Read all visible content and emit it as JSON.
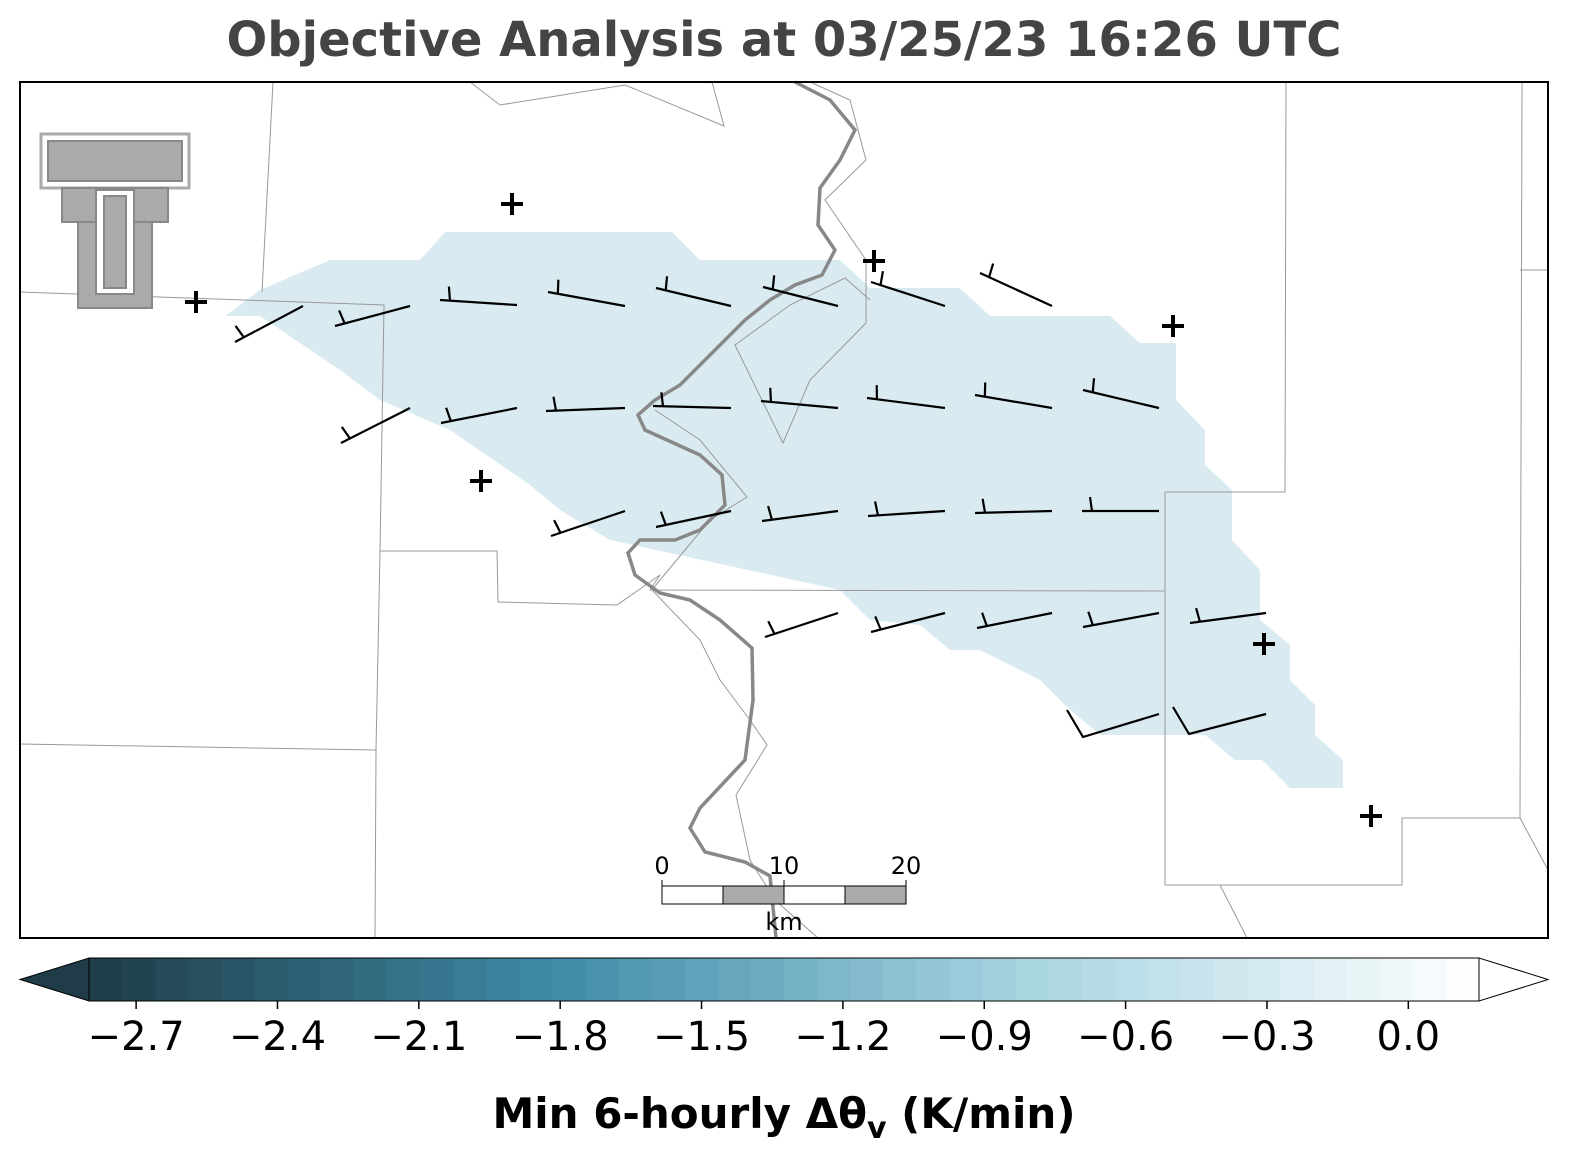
{
  "title": "Objective Analysis at 03/25/23 16:26 UTC",
  "colorbar": {
    "label": {
      "main": "Min 6-hourly Δθ",
      "sub": "v",
      "unit": "(K/min)"
    },
    "lim": [
      -2.8,
      0.15
    ],
    "ticks": [
      {
        "value": -2.7,
        "label": "−2.7"
      },
      {
        "value": -2.4,
        "label": "−2.4"
      },
      {
        "value": -2.1,
        "label": "−2.1"
      },
      {
        "value": -1.8,
        "label": "−1.8"
      },
      {
        "value": -1.5,
        "label": "−1.5"
      },
      {
        "value": -1.2,
        "label": "−1.2"
      },
      {
        "value": -0.9,
        "label": "−0.9"
      },
      {
        "value": -0.6,
        "label": "−0.6"
      },
      {
        "value": -0.3,
        "label": "−0.3"
      },
      {
        "value": 0,
        "label": "0.0"
      }
    ],
    "colormap": [
      "#1f3c48",
      "#3e8ba6",
      "#a6d3e0",
      "#ffffff"
    ]
  },
  "scale_bar": {
    "ticks": [
      0,
      10,
      20
    ],
    "unit": "km"
  }
}
